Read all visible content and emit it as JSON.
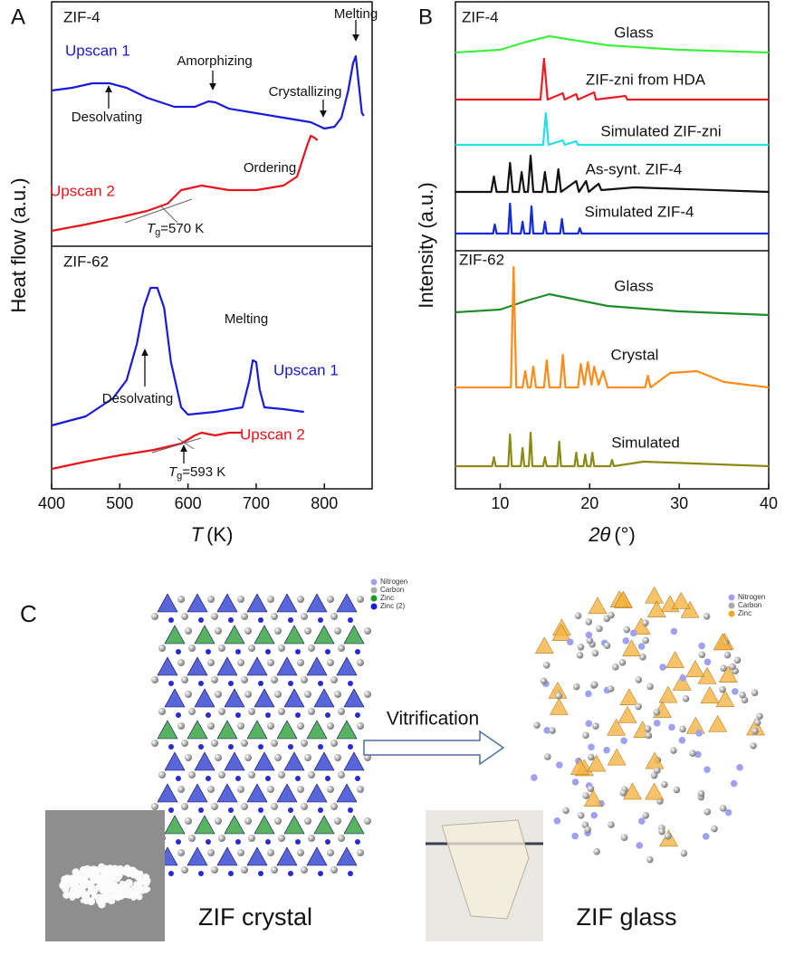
{
  "chart_data": [
    {
      "type": "line",
      "panel_label": "A",
      "subtitle": "ZIF-4",
      "y_label": "Heat flow (a.u.)",
      "xlim": [
        400,
        870
      ],
      "ylim": [
        0,
        270
      ],
      "series": [
        {
          "name": "Upscan 1",
          "color": "#1a1adb",
          "x": [
            400,
            430,
            460,
            485,
            510,
            540,
            580,
            610,
            630,
            640,
            660,
            700,
            740,
            780,
            800,
            815,
            825,
            835,
            842,
            846,
            850,
            855,
            858
          ],
          "values": [
            172,
            175,
            180,
            180,
            175,
            164,
            154,
            154,
            160,
            159,
            152,
            147,
            142,
            137,
            130,
            132,
            142,
            172,
            202,
            210,
            182,
            147,
            144
          ]
        },
        {
          "name": "Upscan 2",
          "color": "#e8141c",
          "x": [
            400,
            450,
            500,
            540,
            570,
            590,
            620,
            660,
            700,
            740,
            760,
            775,
            780,
            785,
            790
          ],
          "values": [
            17,
            24,
            32,
            39,
            47,
            62,
            67,
            62,
            62,
            67,
            77,
            112,
            122,
            120,
            117
          ]
        }
      ],
      "annotations": [
        "Amorphizing",
        "Melting",
        "Desolvating",
        "Crystallizing",
        "Ordering",
        {
          "symbol": "T",
          "subscript": "g",
          "text": "=570 K"
        }
      ]
    },
    {
      "type": "line",
      "subtitle": "ZIF-62",
      "x_label": {
        "symbol": "T",
        "unit": "(K)"
      },
      "xlim": [
        400,
        870
      ],
      "ylim": [
        0,
        268
      ],
      "xticks": [
        400,
        500,
        600,
        700,
        800
      ],
      "series": [
        {
          "name": "Upscan 1",
          "color": "#1a1adb",
          "x": [
            400,
            450,
            490,
            510,
            525,
            535,
            545,
            555,
            565,
            575,
            590,
            600,
            640,
            680,
            690,
            695,
            700,
            705,
            712,
            740,
            770
          ],
          "values": [
            70,
            80,
            100,
            120,
            160,
            200,
            222,
            222,
            200,
            140,
            90,
            82,
            85,
            90,
            120,
            142,
            140,
            110,
            90,
            88,
            85
          ]
        },
        {
          "name": "Upscan 2",
          "color": "#e8141c",
          "x": [
            400,
            450,
            500,
            550,
            590,
            610,
            620,
            640,
            660,
            680
          ],
          "values": [
            22,
            30,
            37,
            43,
            50,
            59,
            62,
            59,
            62,
            62
          ]
        }
      ],
      "annotations": [
        "Melting",
        "Desolvating",
        {
          "symbol": "T",
          "subscript": "g",
          "text": "=593 K"
        }
      ]
    },
    {
      "type": "line",
      "panel_label": "B",
      "subtitle": "ZIF-4",
      "y_label": "Intensity (a.u.)",
      "xlim": [
        5,
        40
      ],
      "ylim": [
        0,
        270
      ],
      "series": [
        {
          "name": "Glass",
          "color": "#3ef03e",
          "x": [
            5,
            10,
            13,
            15.5,
            18,
            22,
            30,
            40
          ],
          "values": [
            214,
            217,
            226,
            232,
            228,
            222,
            217,
            214
          ]
        },
        {
          "name": "ZIF-zni from HDA",
          "color": "#ec1c24",
          "x": [
            5,
            14.5,
            14.9,
            15.3,
            17,
            17.2,
            18.5,
            18.7,
            20.5,
            20.7,
            24,
            24.2,
            40
          ],
          "values": [
            162,
            162,
            207,
            162,
            169,
            162,
            168,
            162,
            170,
            162,
            166,
            162,
            162
          ]
        },
        {
          "name": "Simulated ZIF-zni",
          "color": "#22e0e6",
          "x": [
            5,
            14.8,
            15.1,
            15.4,
            17,
            17.2,
            18.5,
            18.7,
            40
          ],
          "values": [
            112,
            112,
            147,
            112,
            117,
            112,
            116,
            112,
            112
          ]
        },
        {
          "name": "As-synt. ZIF-4",
          "color": "#111111",
          "x": [
            5,
            9,
            9.3,
            9.6,
            10.8,
            11.1,
            11.4,
            12.1,
            12.4,
            12.7,
            13.1,
            13.4,
            13.7,
            14.7,
            15,
            15.3,
            16.2,
            16.5,
            16.8,
            18.5,
            18.8,
            19.6,
            19.9,
            21,
            21.3,
            25,
            40
          ],
          "values": [
            60,
            60,
            77,
            60,
            60,
            92,
            60,
            60,
            82,
            60,
            60,
            100,
            60,
            60,
            82,
            60,
            60,
            85,
            60,
            72,
            60,
            72,
            60,
            69,
            62,
            65,
            60
          ]
        },
        {
          "name": "Simulated ZIF-4",
          "color": "#1428e0",
          "x": [
            5,
            9.2,
            9.4,
            9.6,
            10.9,
            11.1,
            11.3,
            12.3,
            12.5,
            12.7,
            13.3,
            13.5,
            13.7,
            14.8,
            15,
            15.2,
            16.7,
            16.9,
            17.1,
            18.7,
            18.9,
            19.1,
            40
          ],
          "values": [
            14,
            14,
            24,
            14,
            14,
            47,
            14,
            14,
            27,
            14,
            14,
            44,
            14,
            14,
            27,
            14,
            14,
            30,
            14,
            14,
            20,
            14,
            14
          ]
        }
      ]
    },
    {
      "type": "line",
      "subtitle": "ZIF-62",
      "x_label": {
        "symbol": "2θ",
        "unit": "(°)"
      },
      "xlim": [
        5,
        40
      ],
      "ylim": [
        0,
        268
      ],
      "xticks": [
        10,
        20,
        30,
        40
      ],
      "series": [
        {
          "name": "Glass",
          "color": "#1e8c2a",
          "x": [
            5,
            10,
            13,
            15.5,
            18,
            22,
            30,
            40
          ],
          "values": [
            195,
            198,
            208,
            215,
            210,
            202,
            196,
            192
          ]
        },
        {
          "name": "Crystal",
          "color": "#ff8c1a",
          "x": [
            5,
            11.2,
            11.5,
            11.8,
            12.5,
            12.8,
            13.1,
            13.4,
            13.7,
            14,
            14.9,
            15.2,
            15.5,
            16.7,
            17,
            17.3,
            18.7,
            19,
            19.4,
            19.8,
            20.2,
            20.5,
            21,
            21.5,
            22,
            26.2,
            26.5,
            26.8,
            29,
            32,
            35,
            40
          ],
          "values": [
            112,
            112,
            245,
            112,
            112,
            130,
            112,
            112,
            135,
            112,
            112,
            142,
            112,
            112,
            148,
            112,
            112,
            138,
            115,
            140,
            115,
            135,
            115,
            130,
            112,
            112,
            125,
            112,
            128,
            130,
            118,
            112
          ]
        },
        {
          "name": "Simulated",
          "color": "#8a8a14",
          "x": [
            5,
            9.1,
            9.3,
            9.5,
            10.9,
            11.1,
            11.3,
            12.3,
            12.5,
            12.7,
            13.2,
            13.4,
            13.6,
            14.8,
            15,
            15.2,
            16.4,
            16.6,
            16.8,
            18.3,
            18.5,
            18.7,
            19.3,
            19.5,
            19.7,
            20.1,
            20.3,
            20.5,
            22.3,
            22.5,
            22.7,
            26,
            40
          ],
          "values": [
            25,
            25,
            35,
            25,
            25,
            60,
            25,
            25,
            45,
            25,
            25,
            62,
            25,
            25,
            35,
            25,
            25,
            52,
            25,
            25,
            40,
            25,
            25,
            38,
            25,
            25,
            40,
            25,
            25,
            32,
            25,
            30,
            25
          ]
        }
      ]
    }
  ],
  "panel_c": {
    "label": "C",
    "legend_left": [
      "Nitrogen",
      "Carbon",
      "Zinc",
      "Zinc (2)"
    ],
    "legend_right": [
      "Nitrogen",
      "Carbon",
      "Zinc"
    ],
    "arrow_label": "Vitrification",
    "captions": [
      "ZIF crystal",
      "ZIF glass"
    ]
  }
}
